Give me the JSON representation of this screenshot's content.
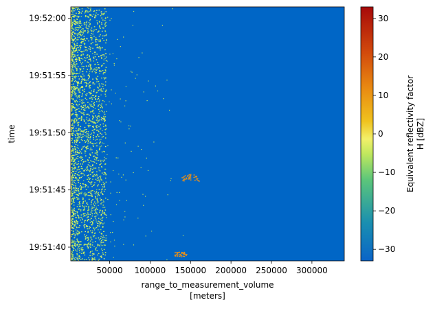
{
  "chart_data": {
    "type": "heatmap",
    "xlabel_line1": "range_to_measurement_volume",
    "xlabel_line2": "[meters]",
    "ylabel": "time",
    "x_ticks": [
      {
        "value": 50000,
        "label": "50000"
      },
      {
        "value": 100000,
        "label": "100000"
      },
      {
        "value": 150000,
        "label": "150000"
      },
      {
        "value": 200000,
        "label": "200000"
      },
      {
        "value": 250000,
        "label": "250000"
      },
      {
        "value": 300000,
        "label": "300000"
      }
    ],
    "xlim": [
      2000,
      340000
    ],
    "y_ticks": [
      {
        "value": 60,
        "label": "19:52:00"
      },
      {
        "value": 55,
        "label": "19:51:55"
      },
      {
        "value": 50,
        "label": "19:51:50"
      },
      {
        "value": 45,
        "label": "19:51:45"
      },
      {
        "value": 40,
        "label": "19:51:40"
      }
    ],
    "ylim_seconds_after_19_51_00": [
      38.8,
      61.0
    ],
    "colorbar": {
      "label_line1": "Equivalent reflectivity factor",
      "label_line2": "H [dBZ]",
      "range": [
        -33,
        33
      ],
      "ticks": [
        {
          "value": 30,
          "label": "30"
        },
        {
          "value": 20,
          "label": "20"
        },
        {
          "value": 10,
          "label": "10"
        },
        {
          "value": 0,
          "label": "0"
        },
        {
          "value": -10,
          "label": "−10"
        },
        {
          "value": -20,
          "label": "−20"
        },
        {
          "value": -30,
          "label": "−30"
        }
      ]
    },
    "background_value_dBZ": -32,
    "features": [
      {
        "name": "near-range clutter band",
        "x_range": [
          2000,
          30000
        ],
        "t_range": [
          38.8,
          61.0
        ],
        "value_dBZ": -8
      },
      {
        "name": "echo",
        "x_range": [
          130000,
          145000
        ],
        "t_range": [
          39.2,
          39.6
        ],
        "value_dBZ": 12
      },
      {
        "name": "echo",
        "x_range": [
          138000,
          160000
        ],
        "t_range": [
          45.8,
          46.4
        ],
        "value_dBZ": 10
      }
    ]
  },
  "colors": {
    "background": "#0066c6",
    "clutter": "#c7ee5c",
    "echo": "#e8901a"
  }
}
